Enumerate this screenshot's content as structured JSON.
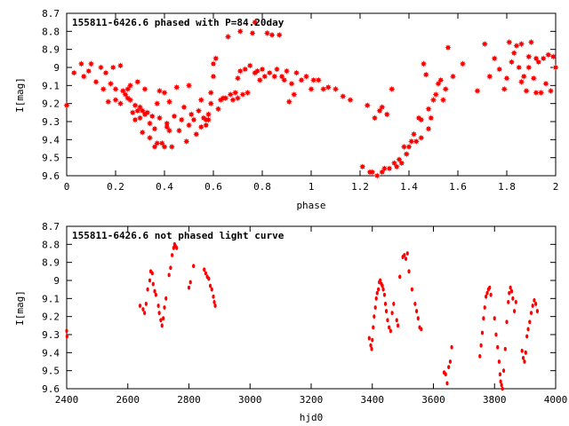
{
  "chart_data": [
    {
      "type": "scatter",
      "title": "155811-6426.6 phased with P=84.20day",
      "xlabel": "phase",
      "ylabel": "I[mag]",
      "xlim": [
        0,
        2
      ],
      "ylim": [
        8.7,
        9.6
      ],
      "y_inverted": true,
      "x_ticks": [
        "0",
        "0.2",
        "0.4",
        "0.6",
        "0.8",
        "1",
        "1.2",
        "1.4",
        "1.6",
        "1.8",
        "2"
      ],
      "y_ticks": [
        "8.7",
        "8.8",
        "8.9",
        "9",
        "9.1",
        "9.2",
        "9.3",
        "9.4",
        "9.5",
        "9.6"
      ],
      "marker": "star",
      "color": "#ff0000",
      "points": [
        [
          0.0,
          9.21
        ],
        [
          0.03,
          9.03
        ],
        [
          0.06,
          8.98
        ],
        [
          0.07,
          9.05
        ],
        [
          0.09,
          9.02
        ],
        [
          0.1,
          8.98
        ],
        [
          0.12,
          9.08
        ],
        [
          0.14,
          9.0
        ],
        [
          0.15,
          9.12
        ],
        [
          0.16,
          9.03
        ],
        [
          0.17,
          9.19
        ],
        [
          0.18,
          9.09
        ],
        [
          0.19,
          9.0
        ],
        [
          0.2,
          9.12
        ],
        [
          0.2,
          9.18
        ],
        [
          0.22,
          9.2
        ],
        [
          0.22,
          8.99
        ],
        [
          0.23,
          9.13
        ],
        [
          0.24,
          9.15
        ],
        [
          0.25,
          9.17
        ],
        [
          0.25,
          9.12
        ],
        [
          0.26,
          9.1
        ],
        [
          0.26,
          9.18
        ],
        [
          0.27,
          9.25
        ],
        [
          0.28,
          9.21
        ],
        [
          0.28,
          9.29
        ],
        [
          0.29,
          9.08
        ],
        [
          0.29,
          9.24
        ],
        [
          0.3,
          9.22
        ],
        [
          0.3,
          9.28
        ],
        [
          0.31,
          9.24
        ],
        [
          0.31,
          9.36
        ],
        [
          0.32,
          9.12
        ],
        [
          0.32,
          9.26
        ],
        [
          0.33,
          9.25
        ],
        [
          0.34,
          9.31
        ],
        [
          0.34,
          9.39
        ],
        [
          0.35,
          9.27
        ],
        [
          0.36,
          9.34
        ],
        [
          0.36,
          9.44
        ],
        [
          0.37,
          9.2
        ],
        [
          0.37,
          9.42
        ],
        [
          0.38,
          9.13
        ],
        [
          0.38,
          9.28
        ],
        [
          0.39,
          9.42
        ],
        [
          0.4,
          9.14
        ],
        [
          0.4,
          9.44
        ],
        [
          0.41,
          9.31
        ],
        [
          0.41,
          9.33
        ],
        [
          0.42,
          9.19
        ],
        [
          0.42,
          9.35
        ],
        [
          0.43,
          9.44
        ],
        [
          0.44,
          9.27
        ],
        [
          0.45,
          9.11
        ],
        [
          0.46,
          9.35
        ],
        [
          0.47,
          9.29
        ],
        [
          0.48,
          9.22
        ],
        [
          0.49,
          9.41
        ],
        [
          0.5,
          9.1
        ],
        [
          0.5,
          9.32
        ],
        [
          0.51,
          9.26
        ],
        [
          0.52,
          9.29
        ],
        [
          0.53,
          9.37
        ],
        [
          0.54,
          9.24
        ],
        [
          0.55,
          9.33
        ],
        [
          0.55,
          9.18
        ],
        [
          0.56,
          9.28
        ],
        [
          0.57,
          9.29
        ],
        [
          0.57,
          9.32
        ],
        [
          0.58,
          9.29
        ],
        [
          0.58,
          9.26
        ],
        [
          0.59,
          9.2
        ],
        [
          0.59,
          9.14
        ],
        [
          0.6,
          9.05
        ],
        [
          0.6,
          8.98
        ],
        [
          0.61,
          8.95
        ],
        [
          0.62,
          9.23
        ],
        [
          0.63,
          9.18
        ],
        [
          0.64,
          9.17
        ],
        [
          0.65,
          9.17
        ],
        [
          0.66,
          8.83
        ],
        [
          0.67,
          9.15
        ],
        [
          0.68,
          9.18
        ],
        [
          0.69,
          9.14
        ],
        [
          0.7,
          9.17
        ],
        [
          0.7,
          9.06
        ],
        [
          0.71,
          9.02
        ],
        [
          0.71,
          8.8
        ],
        [
          0.72,
          9.15
        ],
        [
          0.73,
          9.01
        ],
        [
          0.74,
          9.14
        ],
        [
          0.75,
          8.99
        ],
        [
          0.76,
          8.81
        ],
        [
          0.77,
          8.75
        ],
        [
          0.77,
          9.03
        ],
        [
          0.78,
          9.02
        ],
        [
          0.79,
          9.07
        ],
        [
          0.8,
          9.01
        ],
        [
          0.81,
          9.05
        ],
        [
          0.82,
          8.81
        ],
        [
          0.83,
          9.03
        ],
        [
          0.84,
          8.82
        ],
        [
          0.85,
          9.05
        ],
        [
          0.86,
          9.01
        ],
        [
          0.87,
          8.82
        ],
        [
          0.88,
          9.05
        ],
        [
          0.89,
          9.07
        ],
        [
          0.9,
          9.02
        ],
        [
          0.91,
          9.19
        ],
        [
          0.92,
          9.09
        ],
        [
          0.93,
          9.15
        ],
        [
          0.94,
          9.03
        ],
        [
          0.96,
          9.07
        ],
        [
          0.98,
          9.05
        ],
        [
          1.0,
          9.12
        ],
        [
          1.01,
          9.07
        ],
        [
          1.03,
          9.07
        ],
        [
          1.05,
          9.12
        ],
        [
          1.07,
          9.11
        ],
        [
          1.1,
          9.12
        ],
        [
          1.13,
          9.16
        ],
        [
          1.16,
          9.18
        ],
        [
          1.21,
          9.55
        ],
        [
          1.23,
          9.21
        ],
        [
          1.24,
          9.58
        ],
        [
          1.25,
          9.58
        ],
        [
          1.26,
          9.28
        ],
        [
          1.27,
          9.6
        ],
        [
          1.28,
          9.24
        ],
        [
          1.29,
          9.22
        ],
        [
          1.29,
          9.58
        ],
        [
          1.3,
          9.56
        ],
        [
          1.31,
          9.26
        ],
        [
          1.32,
          9.56
        ],
        [
          1.33,
          9.12
        ],
        [
          1.34,
          9.53
        ],
        [
          1.35,
          9.55
        ],
        [
          1.36,
          9.51
        ],
        [
          1.37,
          9.53
        ],
        [
          1.38,
          9.44
        ],
        [
          1.39,
          9.48
        ],
        [
          1.4,
          9.44
        ],
        [
          1.41,
          9.41
        ],
        [
          1.42,
          9.37
        ],
        [
          1.43,
          9.41
        ],
        [
          1.44,
          9.28
        ],
        [
          1.45,
          9.39
        ],
        [
          1.45,
          9.29
        ],
        [
          1.46,
          8.98
        ],
        [
          1.47,
          9.04
        ],
        [
          1.48,
          9.34
        ],
        [
          1.48,
          9.23
        ],
        [
          1.49,
          9.28
        ],
        [
          1.5,
          9.18
        ],
        [
          1.51,
          9.15
        ],
        [
          1.52,
          9.09
        ],
        [
          1.53,
          9.07
        ],
        [
          1.54,
          9.18
        ],
        [
          1.55,
          9.12
        ],
        [
          1.56,
          8.89
        ],
        [
          1.58,
          9.05
        ],
        [
          1.62,
          8.98
        ],
        [
          1.68,
          9.13
        ],
        [
          1.71,
          8.87
        ],
        [
          1.73,
          9.05
        ],
        [
          1.75,
          8.95
        ],
        [
          1.77,
          9.01
        ],
        [
          1.79,
          9.12
        ],
        [
          1.8,
          9.06
        ],
        [
          1.81,
          8.86
        ],
        [
          1.82,
          8.97
        ],
        [
          1.83,
          8.92
        ],
        [
          1.84,
          8.88
        ],
        [
          1.85,
          9.0
        ],
        [
          1.86,
          8.87
        ],
        [
          1.86,
          9.08
        ],
        [
          1.87,
          9.05
        ],
        [
          1.88,
          9.13
        ],
        [
          1.89,
          9.0
        ],
        [
          1.89,
          8.94
        ],
        [
          1.9,
          8.86
        ],
        [
          1.91,
          9.06
        ],
        [
          1.92,
          8.95
        ],
        [
          1.92,
          9.14
        ],
        [
          1.93,
          8.97
        ],
        [
          1.94,
          9.14
        ],
        [
          1.95,
          8.95
        ],
        [
          1.96,
          9.09
        ],
        [
          1.97,
          8.93
        ],
        [
          1.98,
          9.13
        ],
        [
          1.99,
          8.94
        ],
        [
          2.0,
          9.0
        ]
      ]
    },
    {
      "type": "scatter",
      "title": "155811-6426.6 not phased light curve",
      "xlabel": "hjd0",
      "ylabel": "I[mag]",
      "xlim": [
        2400,
        4000
      ],
      "ylim": [
        8.7,
        9.6
      ],
      "y_inverted": true,
      "x_ticks": [
        "2400",
        "2600",
        "2800",
        "3000",
        "3200",
        "3400",
        "3600",
        "3800",
        "4000"
      ],
      "y_ticks": [
        "8.7",
        "8.8",
        "8.9",
        "9",
        "9.1",
        "9.2",
        "9.3",
        "9.4",
        "9.5",
        "9.6"
      ],
      "marker": "dot",
      "color": "#ff0000",
      "points": [
        [
          2400,
          9.28
        ],
        [
          2401,
          9.31
        ],
        [
          2640,
          9.14
        ],
        [
          2650,
          9.16
        ],
        [
          2655,
          9.18
        ],
        [
          2660,
          9.13
        ],
        [
          2665,
          9.05
        ],
        [
          2672,
          9.0
        ],
        [
          2675,
          8.95
        ],
        [
          2680,
          8.96
        ],
        [
          2683,
          9.02
        ],
        [
          2688,
          9.06
        ],
        [
          2692,
          9.08
        ],
        [
          2700,
          9.14
        ],
        [
          2703,
          9.18
        ],
        [
          2708,
          9.22
        ],
        [
          2712,
          9.25
        ],
        [
          2716,
          9.21
        ],
        [
          2720,
          9.15
        ],
        [
          2725,
          9.1
        ],
        [
          2735,
          8.97
        ],
        [
          2740,
          8.93
        ],
        [
          2745,
          8.86
        ],
        [
          2750,
          8.82
        ],
        [
          2753,
          8.8
        ],
        [
          2756,
          8.81
        ],
        [
          2760,
          8.82
        ],
        [
          2800,
          9.04
        ],
        [
          2805,
          9.01
        ],
        [
          2815,
          8.92
        ],
        [
          2850,
          8.94
        ],
        [
          2855,
          8.96
        ],
        [
          2860,
          8.98
        ],
        [
          2865,
          8.99
        ],
        [
          2870,
          9.03
        ],
        [
          2875,
          9.05
        ],
        [
          2880,
          9.09
        ],
        [
          2883,
          9.12
        ],
        [
          2886,
          9.14
        ],
        [
          3390,
          9.32
        ],
        [
          3395,
          9.36
        ],
        [
          3398,
          9.38
        ],
        [
          3400,
          9.33
        ],
        [
          3403,
          9.26
        ],
        [
          3406,
          9.2
        ],
        [
          3410,
          9.15
        ],
        [
          3413,
          9.1
        ],
        [
          3416,
          9.07
        ],
        [
          3420,
          9.05
        ],
        [
          3423,
          9.01
        ],
        [
          3426,
          9.0
        ],
        [
          3430,
          9.02
        ],
        [
          3433,
          9.03
        ],
        [
          3436,
          9.05
        ],
        [
          3440,
          9.08
        ],
        [
          3443,
          9.13
        ],
        [
          3446,
          9.17
        ],
        [
          3450,
          9.22
        ],
        [
          3455,
          9.26
        ],
        [
          3460,
          9.28
        ],
        [
          3465,
          9.18
        ],
        [
          3470,
          9.13
        ],
        [
          3480,
          9.22
        ],
        [
          3484,
          9.25
        ],
        [
          3490,
          8.98
        ],
        [
          3500,
          8.87
        ],
        [
          3505,
          8.86
        ],
        [
          3510,
          8.88
        ],
        [
          3515,
          8.85
        ],
        [
          3520,
          8.95
        ],
        [
          3530,
          9.05
        ],
        [
          3540,
          9.13
        ],
        [
          3545,
          9.17
        ],
        [
          3550,
          9.21
        ],
        [
          3555,
          9.26
        ],
        [
          3560,
          9.27
        ],
        [
          3635,
          9.51
        ],
        [
          3640,
          9.52
        ],
        [
          3645,
          9.57
        ],
        [
          3650,
          9.48
        ],
        [
          3655,
          9.45
        ],
        [
          3660,
          9.37
        ],
        [
          3752,
          9.42
        ],
        [
          3756,
          9.36
        ],
        [
          3760,
          9.29
        ],
        [
          3764,
          9.21
        ],
        [
          3768,
          9.15
        ],
        [
          3772,
          9.09
        ],
        [
          3776,
          9.07
        ],
        [
          3780,
          9.05
        ],
        [
          3784,
          9.04
        ],
        [
          3788,
          9.08
        ],
        [
          3800,
          9.21
        ],
        [
          3805,
          9.3
        ],
        [
          3810,
          9.37
        ],
        [
          3815,
          9.45
        ],
        [
          3818,
          9.52
        ],
        [
          3820,
          9.56
        ],
        [
          3823,
          9.58
        ],
        [
          3826,
          9.6
        ],
        [
          3830,
          9.5
        ],
        [
          3835,
          9.38
        ],
        [
          3840,
          9.23
        ],
        [
          3845,
          9.12
        ],
        [
          3848,
          9.07
        ],
        [
          3852,
          9.04
        ],
        [
          3856,
          9.06
        ],
        [
          3860,
          9.1
        ],
        [
          3865,
          9.17
        ],
        [
          3870,
          9.12
        ],
        [
          3890,
          9.39
        ],
        [
          3894,
          9.43
        ],
        [
          3898,
          9.45
        ],
        [
          3902,
          9.4
        ],
        [
          3906,
          9.31
        ],
        [
          3910,
          9.27
        ],
        [
          3915,
          9.23
        ],
        [
          3920,
          9.18
        ],
        [
          3925,
          9.14
        ],
        [
          3930,
          9.11
        ],
        [
          3935,
          9.13
        ],
        [
          3940,
          9.17
        ]
      ]
    }
  ]
}
